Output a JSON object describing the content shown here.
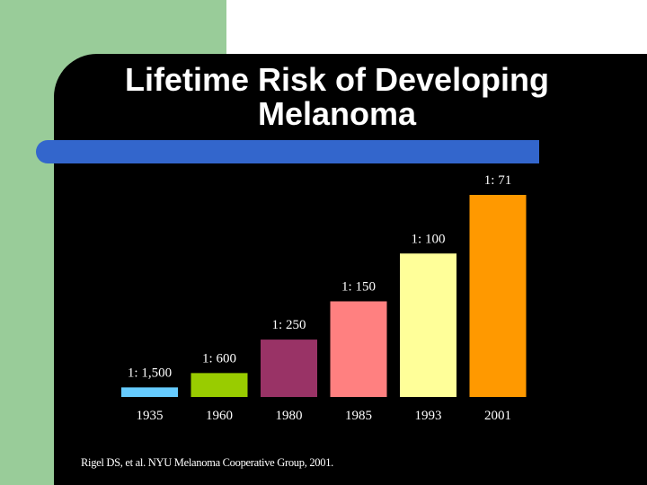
{
  "title_line1": "Lifetime Risk of Developing",
  "title_line2": "Melanoma",
  "source": "Rigel DS, et al. NYU Melanoma Cooperative Group, 2001.",
  "colors": {
    "background_left": "#99cc99",
    "panel": "#000000",
    "accent_bar": "#3366cc",
    "text": "#ffffff"
  },
  "chart_data": {
    "type": "bar",
    "categories": [
      "1935",
      "1960",
      "1980",
      "1985",
      "1993",
      "2001"
    ],
    "values": [
      0.000667,
      0.001667,
      0.004,
      0.006667,
      0.01,
      0.014085
    ],
    "data_labels": [
      "1: 1,500",
      "1: 600",
      "1: 250",
      "1: 150",
      "1: 100",
      "1: 71"
    ],
    "bar_colors": [
      "#66ccff",
      "#99cc00",
      "#993366",
      "#ff8080",
      "#ffff99",
      "#ff9900"
    ],
    "grid": false,
    "legend": "none"
  }
}
